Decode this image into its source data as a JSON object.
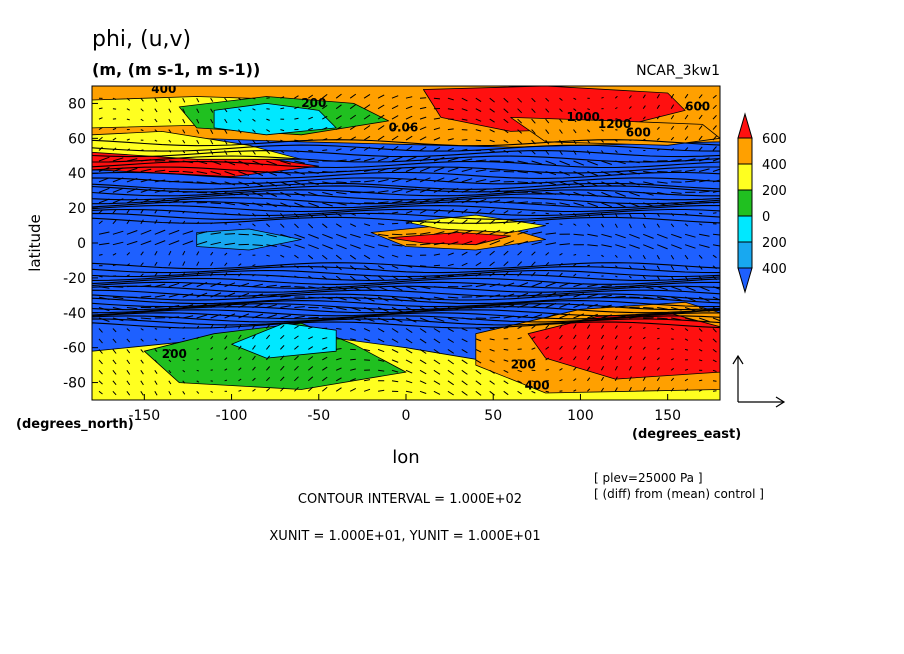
{
  "chart_data": {
    "type": "heatmap",
    "title": "phi, (u,v)",
    "subtitle": "(m, (m s-1, m s-1))",
    "model_label": "NCAR_3kw1",
    "xlabel": "lon",
    "xunits": "(degrees_east)",
    "ylabel": "latitude",
    "yunits": "(degrees_north)",
    "xlim": [
      -180,
      180
    ],
    "ylim": [
      -90,
      90
    ],
    "x_ticks": [
      -150,
      -100,
      -50,
      0,
      50,
      100,
      150
    ],
    "x_tick_labels": [
      "-150",
      "-100",
      "-50",
      "0",
      "50",
      "100",
      "150"
    ],
    "y_ticks": [
      -80,
      -60,
      -40,
      -20,
      0,
      20,
      40,
      60,
      80
    ],
    "y_tick_labels": [
      "-80",
      "-60",
      "-40",
      "-20",
      "0",
      "20",
      "40",
      "60",
      "80"
    ],
    "colorbar": {
      "levels": [
        -600,
        -400,
        -200,
        0,
        200,
        400,
        600
      ],
      "tick_labels": [
        "600",
        "400",
        "200",
        "0",
        "200",
        "400"
      ],
      "colors": [
        "#1e60ff",
        "#18a8f0",
        "#00e8ff",
        "#20c020",
        "#ffff20",
        "#ffa000",
        "#ff1010"
      ]
    },
    "contour_labels": [
      "400",
      "200",
      "0.06",
      "600",
      "1000",
      "1200",
      "600",
      "200",
      "200",
      "400"
    ],
    "annotations": {
      "plev": "[ plev=25000 Pa ]",
      "diff": "[ (diff) from (mean) control ]",
      "contour_interval": "CONTOUR INTERVAL = 1.000E+02",
      "vector_units": "XUNIT = 1.000E+01, YUNIT = 1.000E+01"
    }
  }
}
